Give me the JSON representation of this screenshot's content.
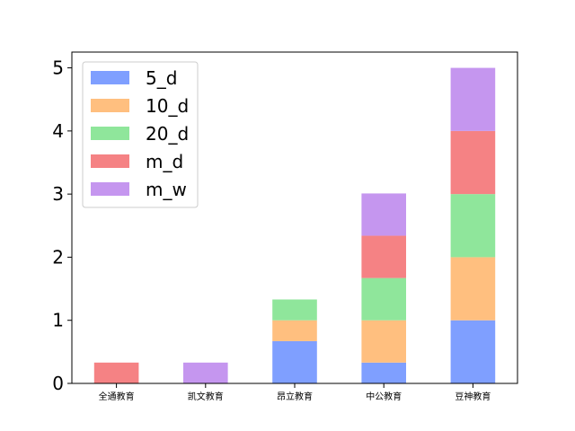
{
  "chart_data": {
    "type": "bar",
    "stacked": true,
    "categories": [
      "全通教育",
      "凯文教育",
      "昂立教育",
      "中公教育",
      "豆神教育"
    ],
    "series": [
      {
        "name": "5_d",
        "color": "#7f9fff",
        "values": [
          0,
          0,
          0.67,
          0.33,
          1
        ]
      },
      {
        "name": "10_d",
        "color": "#ffbf7f",
        "values": [
          0,
          0,
          0.33,
          0.67,
          1
        ]
      },
      {
        "name": "20_d",
        "color": "#8fe69b",
        "values": [
          0,
          0,
          0.33,
          0.67,
          1
        ]
      },
      {
        "name": "m_d",
        "color": "#f58284",
        "values": [
          0.33,
          0,
          0,
          0.67,
          1
        ]
      },
      {
        "name": "m_w",
        "color": "#c596ef",
        "values": [
          0,
          0.33,
          0,
          0.67,
          1
        ]
      }
    ],
    "ylim": [
      0,
      5.25
    ],
    "yticks": [
      0,
      1,
      2,
      3,
      4,
      5
    ],
    "legend_position": "top-left",
    "grid": false
  }
}
